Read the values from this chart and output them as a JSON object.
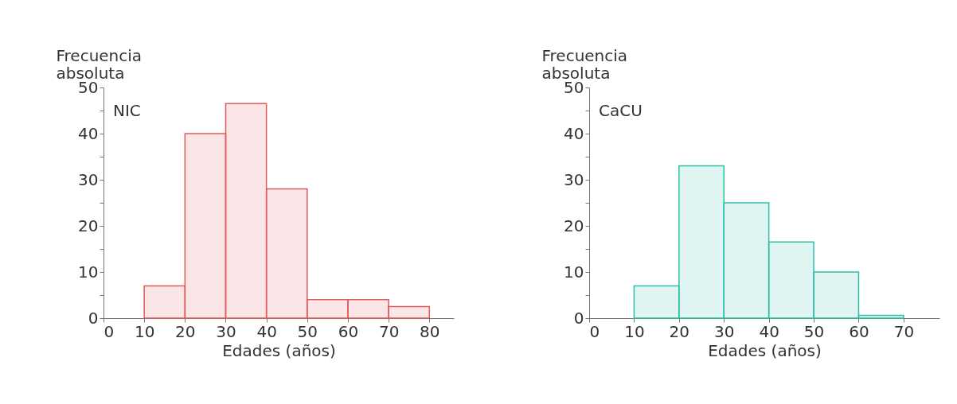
{
  "chart_data": [
    {
      "type": "histogram",
      "ylabel": "Frecuencia absoluta",
      "xlabel": "Edades (años)",
      "annotations": [
        "NIC"
      ],
      "bins": [
        10,
        20,
        30,
        40,
        50,
        60,
        70,
        80
      ],
      "values": [
        7,
        40,
        46.5,
        28,
        4,
        4,
        2.5
      ],
      "color": "#e05a5a",
      "xlim": [
        0,
        86
      ],
      "xticks": [
        0,
        10,
        20,
        30,
        40,
        50,
        60,
        70,
        80
      ],
      "ylim": [
        0,
        50
      ],
      "yticks": [
        0,
        {
          "value": 5,
          "label": null
        },
        10,
        {
          "value": 15,
          "label": null
        },
        20,
        {
          "value": 25,
          "label": null
        },
        30,
        {
          "value": 35,
          "label": null
        },
        40,
        {
          "value": 45,
          "label": null
        },
        50
      ],
      "grid": false
    },
    {
      "type": "histogram",
      "ylabel": "Frecuencia absoluta",
      "xlabel": "Edades (años)",
      "annotations": [
        "CaCU"
      ],
      "bins": [
        10,
        20,
        30,
        40,
        50,
        60,
        70
      ],
      "values": [
        7,
        33,
        25,
        16.5,
        10,
        0.6
      ],
      "color": "#2dbfa8",
      "xlim": [
        0,
        78
      ],
      "xticks": [
        0,
        10,
        20,
        30,
        40,
        50,
        60,
        70
      ],
      "ylim": [
        0,
        50
      ],
      "yticks": [
        0,
        {
          "value": 5,
          "label": null
        },
        10,
        {
          "value": 15,
          "label": null
        },
        20,
        {
          "value": 25,
          "label": null
        },
        30,
        {
          "value": 35,
          "label": null
        },
        40,
        {
          "value": 45,
          "label": null
        },
        50
      ],
      "grid": false
    }
  ]
}
